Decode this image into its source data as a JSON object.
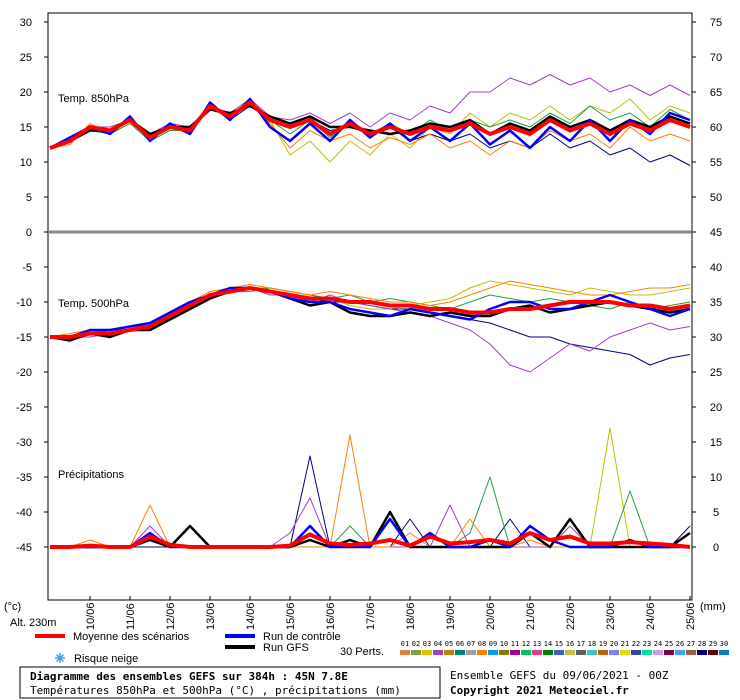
{
  "chart_data": {
    "type": "line",
    "panels": [
      {
        "label": "Temp. 850hPa"
      },
      {
        "label": "Temp. 500hPa"
      },
      {
        "label": "Précipitations",
        "axis": "y2"
      }
    ],
    "x": [
      0,
      12,
      24,
      36,
      48,
      60,
      72,
      84,
      96,
      108,
      120,
      132,
      144,
      156,
      168,
      180,
      192,
      204,
      216,
      228,
      240,
      252,
      264,
      276,
      288,
      300,
      312,
      324,
      336,
      348,
      360,
      372,
      384
    ],
    "xlim": [
      0,
      384
    ],
    "xticks": [
      {
        "value": 24,
        "label": "10/06"
      },
      {
        "value": 48,
        "label": "11/06"
      },
      {
        "value": 72,
        "label": "12/06"
      },
      {
        "value": 96,
        "label": "13/06"
      },
      {
        "value": 120,
        "label": "14/06"
      },
      {
        "value": 144,
        "label": "15/06"
      },
      {
        "value": 168,
        "label": "16/06"
      },
      {
        "value": 192,
        "label": "17/06"
      },
      {
        "value": 216,
        "label": "18/06"
      },
      {
        "value": 240,
        "label": "19/06"
      },
      {
        "value": 264,
        "label": "20/06"
      },
      {
        "value": 288,
        "label": "21/06"
      },
      {
        "value": 312,
        "label": "22/06"
      },
      {
        "value": 336,
        "label": "23/06"
      },
      {
        "value": 360,
        "label": "24/06"
      },
      {
        "value": 384,
        "label": "25/06"
      }
    ],
    "ylim": [
      -52.5,
      31
    ],
    "yticks": [
      30,
      25,
      20,
      15,
      10,
      5,
      0,
      -5,
      -10,
      -15,
      -20,
      -25,
      -30,
      -35,
      -40,
      -45
    ],
    "y2lim": [
      -7.5,
      76
    ],
    "y2ticks": [
      75,
      70,
      65,
      60,
      55,
      50,
      45,
      40,
      35,
      30,
      25,
      20,
      15,
      10,
      5,
      0
    ],
    "ylabel": "(°c)",
    "y2label": "(mm)",
    "altitude": "Alt. 230m",
    "snow_risk": "Risque neige",
    "series": [
      {
        "name": "Moyenne des scénarios",
        "color": "#ff0000",
        "values": [
          [
            12,
            13,
            15,
            14.5,
            16,
            13.5,
            15,
            14.5,
            18,
            16.5,
            18.5,
            16,
            15,
            16,
            14,
            15.5,
            14,
            15,
            14,
            15,
            14.5,
            15.5,
            14,
            15,
            14,
            16,
            14.5,
            15.5,
            14,
            15.5,
            14.5,
            16,
            15
          ],
          [
            -15,
            -15,
            -14.5,
            -14.5,
            -14,
            -13.5,
            -12,
            -10.5,
            -9,
            -8.5,
            -8,
            -8.5,
            -9,
            -9.5,
            -9.5,
            -10,
            -10,
            -10.5,
            -10.5,
            -11,
            -11,
            -11.5,
            -11.5,
            -11,
            -11,
            -10.5,
            -10,
            -10,
            -10,
            -10.5,
            -10.5,
            -11,
            -10.5
          ],
          [
            0,
            0,
            0.2,
            0,
            0,
            1.5,
            0.3,
            0,
            0,
            0,
            0,
            0,
            0.2,
            1.8,
            0.5,
            0.3,
            0.5,
            1,
            0.2,
            1.5,
            0.5,
            0.7,
            1,
            0.5,
            2,
            1,
            1.5,
            0.5,
            0.5,
            0.7,
            0.5,
            0.3,
            0
          ]
        ]
      },
      {
        "name": "Run de contrôle",
        "color": "#0000ff",
        "values": [
          [
            12,
            13.5,
            15,
            14,
            16.5,
            13,
            15.5,
            14,
            18.5,
            16,
            19,
            15,
            13,
            15.5,
            13,
            16,
            13.5,
            15.5,
            13,
            15,
            13,
            15.5,
            12.5,
            14.5,
            12,
            15,
            13,
            16,
            13,
            16,
            14,
            17,
            16
          ],
          [
            -15,
            -15,
            -14,
            -14,
            -13.5,
            -13,
            -11.5,
            -10,
            -9,
            -8,
            -8,
            -8.5,
            -9.5,
            -10,
            -10,
            -11,
            -11.5,
            -12,
            -11,
            -11.5,
            -12,
            -12.5,
            -11,
            -10,
            -10,
            -11,
            -11,
            -10,
            -9,
            -10,
            -11,
            -12,
            -11
          ],
          [
            0,
            0,
            0,
            0,
            0,
            2,
            0,
            0,
            0,
            0,
            0,
            0,
            0,
            3,
            0,
            0,
            0,
            4,
            0,
            2,
            0,
            0,
            1,
            0,
            3,
            1,
            0,
            0,
            0,
            1,
            0,
            0,
            0
          ]
        ]
      },
      {
        "name": "Run GFS",
        "color": "#000000",
        "values": [
          [
            12,
            13,
            14.5,
            14.5,
            16,
            14,
            15,
            15,
            17.5,
            17,
            18,
            16.5,
            15.5,
            16.5,
            15,
            15,
            14.5,
            14,
            14.5,
            15.5,
            15,
            16,
            14,
            15.5,
            14.5,
            16.5,
            15,
            16,
            14.5,
            16,
            15,
            16.5,
            15.5
          ],
          [
            -15,
            -15.5,
            -14.5,
            -15,
            -14,
            -14,
            -12.5,
            -11,
            -9.5,
            -8.5,
            -8,
            -8.5,
            -9.5,
            -10.5,
            -10,
            -11.5,
            -12,
            -12,
            -11.5,
            -12,
            -11.5,
            -12,
            -12,
            -11,
            -10.5,
            -11.5,
            -11,
            -10.5,
            -10,
            -10.5,
            -11,
            -11.5,
            -11
          ],
          [
            0,
            0,
            0,
            0,
            0,
            1,
            0,
            3,
            0,
            0,
            0,
            0,
            0,
            1,
            0,
            1,
            0,
            5,
            0,
            0,
            0,
            0,
            0,
            0,
            2,
            0,
            4,
            0,
            0,
            0,
            0,
            0,
            2
          ]
        ]
      },
      {
        "color": "#ff8000",
        "values": [
          [
            12,
            12.5,
            15.5,
            14,
            16,
            13.5,
            15,
            14,
            18,
            16,
            18.5,
            15.5,
            12,
            14.5,
            13,
            14,
            12,
            13.5,
            12.5,
            14,
            12,
            13,
            11,
            13,
            12,
            14.5,
            13,
            14,
            12,
            15,
            13,
            14,
            13
          ],
          [
            -15,
            -14.5,
            -14,
            -14,
            -13.5,
            -13,
            -12,
            -10,
            -8.5,
            -8,
            -7.5,
            -8,
            -8.5,
            -9,
            -8.5,
            -9,
            -9.5,
            -10,
            -10,
            -10.5,
            -10,
            -9,
            -8,
            -7,
            -7.5,
            -8,
            -8.5,
            -9,
            -9,
            -8.5,
            -8,
            -8,
            -7.5
          ],
          [
            0,
            0,
            1,
            0,
            0,
            6,
            0,
            0,
            0,
            0,
            0,
            0,
            0,
            0,
            0,
            16,
            0,
            0,
            2,
            0,
            0,
            4,
            0,
            0,
            1,
            0,
            0,
            0,
            0,
            0,
            0,
            0,
            0
          ]
        ]
      },
      {
        "color": "#a040c0",
        "values": [
          [
            12,
            13,
            15,
            15,
            16,
            14,
            15.5,
            15,
            18,
            17,
            19,
            16.5,
            16,
            17,
            15.5,
            17,
            15,
            17,
            16,
            18,
            17,
            20,
            20,
            22,
            21,
            22.5,
            21,
            22,
            20,
            21,
            19.5,
            21,
            19.5
          ],
          [
            -15,
            -15,
            -15,
            -14.5,
            -14,
            -13.5,
            -12,
            -10.5,
            -9,
            -8.5,
            -8,
            -9,
            -9,
            -10,
            -9,
            -10,
            -10.5,
            -11,
            -11.5,
            -12,
            -13,
            -14,
            -16,
            -19,
            -20,
            -18,
            -16,
            -17,
            -15,
            -14,
            -13,
            -14,
            -13.5
          ],
          [
            0,
            0,
            0,
            0,
            0,
            3,
            0,
            0,
            0,
            0,
            0,
            0,
            2,
            7,
            0,
            0,
            0,
            0,
            0,
            0,
            6,
            0,
            0,
            0,
            0,
            0,
            3,
            0,
            0,
            0,
            0,
            0,
            0
          ]
        ]
      },
      {
        "color": "#20a040",
        "values": [
          [
            12,
            13,
            14.5,
            14,
            15.5,
            13,
            14.5,
            14.5,
            17.5,
            16.5,
            18,
            16,
            14,
            16,
            13.5,
            16,
            14,
            15.5,
            14,
            16,
            14.5,
            16,
            15,
            16,
            15,
            17,
            15.5,
            18,
            16,
            17,
            15,
            17.5,
            16
          ],
          [
            -15,
            -15,
            -14.5,
            -14,
            -14,
            -13,
            -12,
            -10.5,
            -9,
            -8.5,
            -8.5,
            -8,
            -8.5,
            -9,
            -9.5,
            -9,
            -10,
            -9.5,
            -10,
            -10.5,
            -11,
            -10,
            -9,
            -9.5,
            -10,
            -9.5,
            -10,
            -10.5,
            -11,
            -10,
            -11,
            -10.5,
            -10
          ],
          [
            0,
            0,
            0,
            0,
            0,
            1,
            0,
            0,
            0,
            0,
            0,
            0,
            0,
            0,
            0,
            3,
            0,
            0,
            0,
            0,
            0,
            2,
            10,
            0,
            0,
            0,
            0,
            0,
            0,
            8,
            0,
            0,
            0
          ]
        ]
      },
      {
        "color": "#000080",
        "values": [
          [
            12,
            13,
            15,
            14,
            16,
            14,
            15,
            15,
            18,
            16,
            18,
            16,
            15,
            16,
            14.5,
            15,
            14,
            15,
            13,
            14,
            13,
            14,
            12,
            13,
            12,
            14,
            12,
            13,
            11,
            12,
            10,
            11,
            9.5
          ],
          [
            -15,
            -15,
            -14.5,
            -14.5,
            -14,
            -13.5,
            -12,
            -10.5,
            -9,
            -8.5,
            -8,
            -8.5,
            -9,
            -9.5,
            -10,
            -10,
            -10.5,
            -11,
            -11,
            -11.5,
            -12,
            -12.5,
            -13,
            -14,
            -15,
            -15,
            -16,
            -16.5,
            -17,
            -17.5,
            -19,
            -18,
            -17.5
          ],
          [
            0,
            0,
            0,
            0,
            0,
            0,
            0,
            0,
            0,
            0,
            0,
            0,
            0,
            13,
            0,
            0,
            0,
            0,
            4,
            0,
            0,
            0,
            0,
            4,
            0,
            0,
            0,
            0,
            0,
            0,
            0,
            0,
            3
          ]
        ]
      },
      {
        "color": "#c0c000",
        "values": [
          [
            12,
            13,
            15,
            14.5,
            16,
            13.5,
            15,
            14.5,
            18,
            16.5,
            18.5,
            16,
            11,
            13,
            10,
            13,
            11,
            14,
            12,
            15,
            14,
            17,
            15,
            17,
            16,
            18,
            16,
            18,
            17,
            19,
            16,
            18,
            17
          ],
          [
            -15,
            -15,
            -14,
            -14.5,
            -13.5,
            -13.5,
            -11.5,
            -10,
            -9,
            -8.5,
            -8,
            -8,
            -8.5,
            -9,
            -9.5,
            -10.5,
            -11,
            -11,
            -10.5,
            -10,
            -9.5,
            -8,
            -7,
            -7.5,
            -8,
            -8.5,
            -9,
            -8,
            -8.5,
            -9,
            -9,
            -8.5,
            -8
          ],
          [
            0,
            0,
            0,
            0,
            0,
            0,
            0,
            0,
            0,
            0,
            0,
            0,
            0,
            0,
            0,
            0,
            0,
            0,
            0,
            0,
            0,
            0,
            0,
            0,
            0,
            0,
            0,
            0,
            17,
            0,
            0,
            0,
            0
          ]
        ]
      }
    ],
    "perturbations": {
      "label": "30 Perts.",
      "members": [
        {
          "name": "01",
          "color": "#e08040"
        },
        {
          "name": "02",
          "color": "#80a040"
        },
        {
          "name": "03",
          "color": "#e0c000"
        },
        {
          "name": "04",
          "color": "#a040c0"
        },
        {
          "name": "05",
          "color": "#c08000"
        },
        {
          "name": "06",
          "color": "#008080"
        },
        {
          "name": "07",
          "color": "#a0a0a0"
        },
        {
          "name": "08",
          "color": "#ff8000"
        },
        {
          "name": "09",
          "color": "#00a0e0"
        },
        {
          "name": "10",
          "color": "#808000"
        },
        {
          "name": "11",
          "color": "#a000a0"
        },
        {
          "name": "12",
          "color": "#00c060"
        },
        {
          "name": "13",
          "color": "#e04080"
        },
        {
          "name": "14",
          "color": "#008000"
        },
        {
          "name": "15",
          "color": "#4060c0"
        },
        {
          "name": "16",
          "color": "#c0c040"
        },
        {
          "name": "17",
          "color": "#606060"
        },
        {
          "name": "18",
          "color": "#40c0c0"
        },
        {
          "name": "19",
          "color": "#c06000"
        },
        {
          "name": "20",
          "color": "#8080ff"
        },
        {
          "name": "21",
          "color": "#e0e000"
        },
        {
          "name": "22",
          "color": "#4040a0"
        },
        {
          "name": "23",
          "color": "#00e0a0"
        },
        {
          "name": "24",
          "color": "#c0a0e0"
        },
        {
          "name": "25",
          "color": "#800040"
        },
        {
          "name": "26",
          "color": "#40a0ff"
        },
        {
          "name": "27",
          "color": "#a06040"
        },
        {
          "name": "28",
          "color": "#000080"
        },
        {
          "name": "29",
          "color": "#600000"
        },
        {
          "name": "30",
          "color": "#0080c0"
        }
      ]
    }
  },
  "footer": {
    "title": "Diagramme des ensembles GEFS sur 384h : 45N 7.8E",
    "subtitle": "Températures 850hPa et 500hPa (°C) , précipitations (mm)",
    "run": "Ensemble GEFS du 09/06/2021 - 00Z",
    "copyright": "Copyright 2021 Meteociel.fr"
  }
}
